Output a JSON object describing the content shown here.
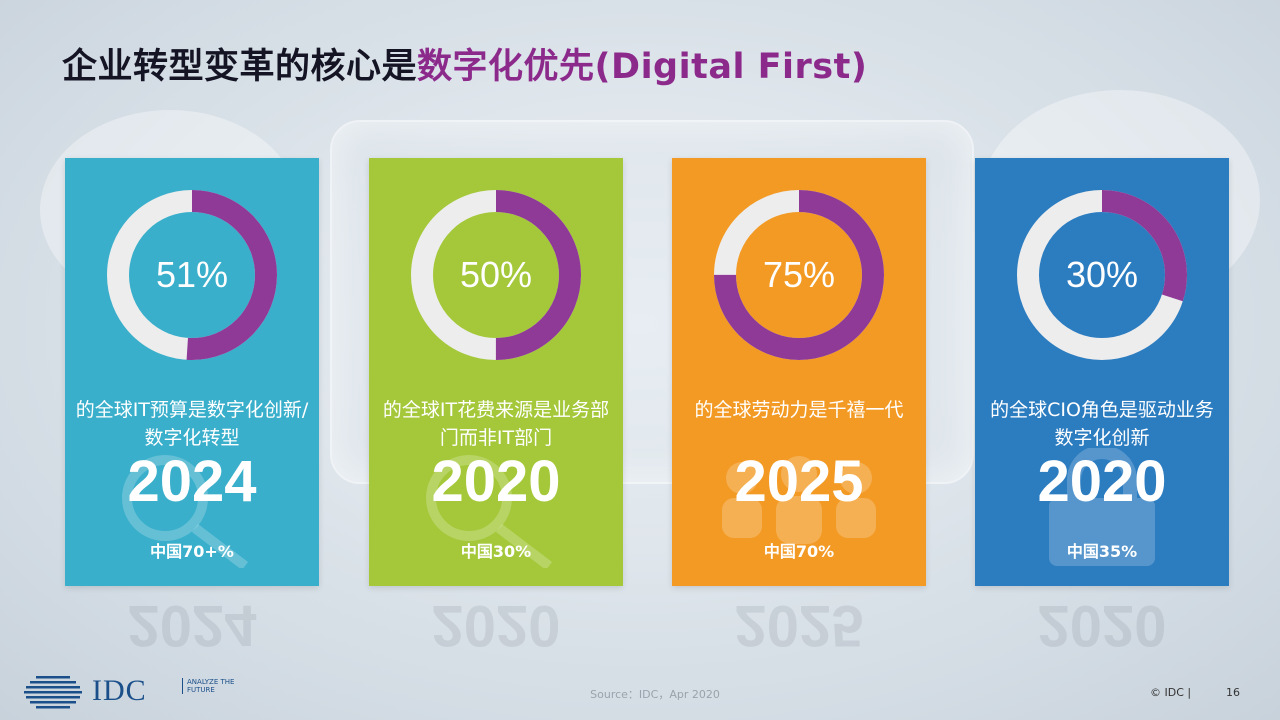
{
  "title": {
    "main": "企业转型变革的核心是",
    "highlight": "数字化优先(Digital First)"
  },
  "cards": [
    {
      "percent": "51%",
      "value": 0.51,
      "desc": "的全球IT预算是数字化创新/数字化转型",
      "year": "2024",
      "china": "中国70+%",
      "color": "#3aafcb",
      "icon": "magnifier-icon"
    },
    {
      "percent": "50%",
      "value": 0.5,
      "desc": "的全球IT花费来源是业务部门而非IT部门",
      "year": "2020",
      "china": "中国30%",
      "color": "#a4c83a",
      "icon": "magnifier-icon"
    },
    {
      "percent": "75%",
      "value": 0.75,
      "desc": "的全球劳动力是千禧一代",
      "year": "2025",
      "china": "中国70%",
      "color": "#f39a24",
      "icon": "people-icon"
    },
    {
      "percent": "30%",
      "value": 0.3,
      "desc": "的全球CIO角色是驱动业务数字化创新",
      "year": "2020",
      "china": "中国35%",
      "color": "#2c7cc0",
      "icon": "lock-icon"
    }
  ],
  "donut_colors": {
    "ring": "#ededed",
    "fill": "#8e3a96"
  },
  "footer": {
    "logo": "IDC",
    "tagline": "ANALYZE THE FUTURE",
    "source": "Source：IDC，Apr 2020",
    "copyright": "© IDC  |",
    "page": "16"
  }
}
